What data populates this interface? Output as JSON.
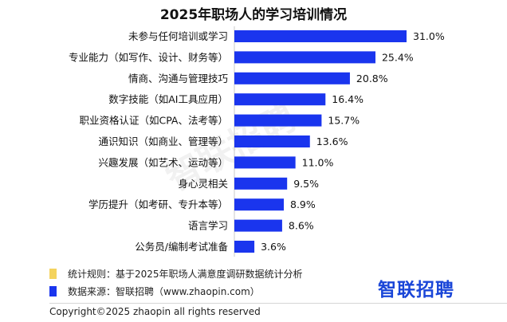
{
  "colors": {
    "bar": "#1a35ee",
    "rule_square": "#f4d35e",
    "source_square": "#1a35ee",
    "brand": "#1a46d8"
  },
  "chart_data": {
    "type": "bar",
    "orientation": "horizontal",
    "title": "2025年职场人的学习培训情况",
    "categories": [
      "未参与任何培训或学习",
      "专业能力（如写作、设计、财务等）",
      "情商、沟通与管理技巧",
      "数字技能（如AI工具应用）",
      "职业资格认证（如CPA、法考等）",
      "通识知识（如商业、管理等）",
      "兴趣发展（如艺术、运动等）",
      "身心灵相关",
      "学历提升（如考研、专升本等）",
      "语言学习",
      "公务员/编制考试准备"
    ],
    "values": [
      31.0,
      25.4,
      20.8,
      16.4,
      15.7,
      13.6,
      11.0,
      9.5,
      8.9,
      8.6,
      3.6
    ],
    "value_labels": [
      "31.0%",
      "25.4%",
      "20.8%",
      "16.4%",
      "15.7%",
      "13.6%",
      "11.0%",
      "9.5%",
      "8.9%",
      "8.6%",
      "3.6%"
    ],
    "xlim": [
      0,
      31.0
    ],
    "unit": "%"
  },
  "footnotes": {
    "rule": "统计规则：基于2025年职场人满意度调研数据统计分析",
    "source": "数据来源：智联招聘（www.zhaopin.com）"
  },
  "watermark": "智联招聘",
  "logo": "智联招聘",
  "copyright": "Copyright©2025 zhaopin all rights reserved"
}
